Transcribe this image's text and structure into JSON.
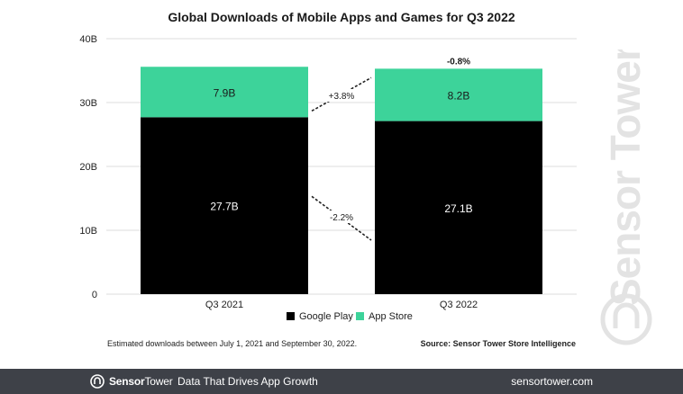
{
  "chart_data": {
    "type": "bar",
    "stacked": true,
    "title": "Global Downloads of Mobile Apps and Games for Q3 2022",
    "categories": [
      "Q3 2021",
      "Q3 2022"
    ],
    "series": [
      {
        "name": "Google Play",
        "values": [
          27.7,
          27.1
        ],
        "labels": [
          "27.7B",
          "27.1B"
        ],
        "color": "#000000"
      },
      {
        "name": "App Store",
        "values": [
          7.9,
          8.2
        ],
        "labels": [
          "7.9B",
          "8.2B"
        ],
        "color": "#3dd39a"
      }
    ],
    "ylim": [
      0,
      40
    ],
    "yticks": [
      "0",
      "10B",
      "20B",
      "30B",
      "40B"
    ],
    "grid": true,
    "legend": "bottom",
    "annotations": {
      "total_change": "-0.8%",
      "app_store_change": "+3.8%",
      "google_play_change": "-2.2%"
    }
  },
  "footnote": "Estimated downloads between July 1, 2021 and September 30, 2022.",
  "source": "Source: Sensor Tower Store Intelligence",
  "watermark": "Sensor Tower",
  "footer": {
    "brand_sensor": "Sensor",
    "brand_tower": "Tower",
    "tagline": "Data That Drives App Growth",
    "url": "sensortower.com"
  }
}
